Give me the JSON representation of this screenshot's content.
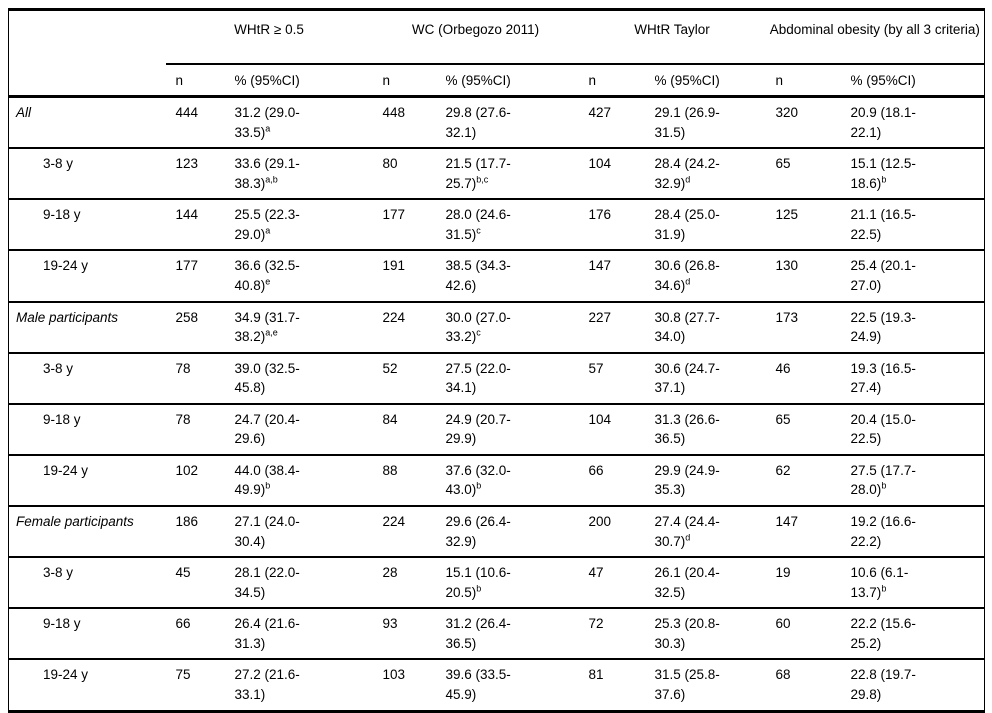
{
  "table": {
    "group_headers": [
      {
        "label": "WHtR ≥ 0.5"
      },
      {
        "label": "WC (Orbegozo 2011)"
      },
      {
        "label": "WHtR Taylor"
      },
      {
        "label": "Abdominal obesity (by all 3 criteria)"
      }
    ],
    "sub_header": {
      "n": "n",
      "pct": "% (95%CI)"
    },
    "rows": [
      {
        "label": "All",
        "type": "group",
        "cells": [
          {
            "n": "444",
            "p1": "31.2 (29.0-",
            "p2": "33.5)",
            "sup": "a"
          },
          {
            "n": "448",
            "p1": "29.8 (27.6-",
            "p2": "32.1)",
            "sup": ""
          },
          {
            "n": "427",
            "p1": "29.1 (26.9-",
            "p2": "31.5)",
            "sup": ""
          },
          {
            "n": "320",
            "p1": "20.9 (18.1-",
            "p2": "22.1)",
            "sup": ""
          }
        ]
      },
      {
        "label": "3-8 y",
        "type": "age",
        "cells": [
          {
            "n": "123",
            "p1": "33.6 (29.1-",
            "p2": "38.3)",
            "sup": "a,b"
          },
          {
            "n": "80",
            "p1": "21.5 (17.7-",
            "p2": "25.7)",
            "sup": "b,c"
          },
          {
            "n": "104",
            "p1": "28.4 (24.2-",
            "p2": "32.9)",
            "sup": "d"
          },
          {
            "n": "65",
            "p1": "15.1 (12.5-",
            "p2": "18.6)",
            "sup": "b"
          }
        ]
      },
      {
        "label": "9-18 y",
        "type": "age",
        "cells": [
          {
            "n": "144",
            "p1": "25.5 (22.3-",
            "p2": "29.0)",
            "sup": "a"
          },
          {
            "n": "177",
            "p1": "28.0 (24.6-",
            "p2": "31.5)",
            "sup": "c"
          },
          {
            "n": "176",
            "p1": "28.4 (25.0-",
            "p2": "31.9)",
            "sup": ""
          },
          {
            "n": "125",
            "p1": "21.1 (16.5-",
            "p2": "22.5)",
            "sup": ""
          }
        ]
      },
      {
        "label": "19-24 y",
        "type": "age",
        "cells": [
          {
            "n": "177",
            "p1": "36.6 (32.5-",
            "p2": "40.8)",
            "sup": "e"
          },
          {
            "n": "191",
            "p1": "38.5 (34.3-",
            "p2": "42.6)",
            "sup": ""
          },
          {
            "n": "147",
            "p1": "30.6 (26.8-",
            "p2": "34.6)",
            "sup": "d"
          },
          {
            "n": "130",
            "p1": "25.4 (20.1-",
            "p2": "27.0)",
            "sup": ""
          }
        ]
      },
      {
        "label": "Male participants",
        "type": "group",
        "cells": [
          {
            "n": "258",
            "p1": "34.9 (31.7-",
            "p2": "38.2)",
            "sup": "a,e"
          },
          {
            "n": "224",
            "p1": "30.0 (27.0-",
            "p2": "33.2)",
            "sup": "c"
          },
          {
            "n": "227",
            "p1": "30.8 (27.7-",
            "p2": "34.0)",
            "sup": ""
          },
          {
            "n": "173",
            "p1": "22.5 (19.3-",
            "p2": "24.9)",
            "sup": ""
          }
        ]
      },
      {
        "label": "3-8 y",
        "type": "age",
        "cells": [
          {
            "n": "78",
            "p1": "39.0 (32.5-",
            "p2": "45.8)",
            "sup": ""
          },
          {
            "n": "52",
            "p1": "27.5 (22.0-",
            "p2": "34.1)",
            "sup": ""
          },
          {
            "n": "57",
            "p1": "30.6 (24.7-",
            "p2": "37.1)",
            "sup": ""
          },
          {
            "n": "46",
            "p1": "19.3 (16.5-",
            "p2": "27.4)",
            "sup": ""
          }
        ]
      },
      {
        "label": "9-18 y",
        "type": "age",
        "cells": [
          {
            "n": "78",
            "p1": "24.7 (20.4-",
            "p2": "29.6)",
            "sup": ""
          },
          {
            "n": "84",
            "p1": "24.9 (20.7-",
            "p2": "29.9)",
            "sup": ""
          },
          {
            "n": "104",
            "p1": "31.3 (26.6-",
            "p2": "36.5)",
            "sup": ""
          },
          {
            "n": "65",
            "p1": "20.4 (15.0-",
            "p2": "22.5)",
            "sup": ""
          }
        ]
      },
      {
        "label": "19-24 y",
        "type": "age",
        "cells": [
          {
            "n": "102",
            "p1": "44.0 (38.4-",
            "p2": "49.9)",
            "sup": "b"
          },
          {
            "n": "88",
            "p1": "37.6 (32.0-",
            "p2": "43.0)",
            "sup": "b"
          },
          {
            "n": "66",
            "p1": "29.9 (24.9-",
            "p2": "35.3)",
            "sup": ""
          },
          {
            "n": "62",
            "p1": "27.5 (17.7-",
            "p2": "28.0)",
            "sup": "b"
          }
        ]
      },
      {
        "label": "Female participants",
        "type": "group",
        "cells": [
          {
            "n": "186",
            "p1": "27.1 (24.0-",
            "p2": "30.4)",
            "sup": ""
          },
          {
            "n": "224",
            "p1": "29.6 (26.4-",
            "p2": "32.9)",
            "sup": ""
          },
          {
            "n": "200",
            "p1": "27.4 (24.4-",
            "p2": "30.7)",
            "sup": "d"
          },
          {
            "n": "147",
            "p1": "19.2 (16.6-",
            "p2": "22.2)",
            "sup": ""
          }
        ]
      },
      {
        "label": "3-8 y",
        "type": "age",
        "cells": [
          {
            "n": "45",
            "p1": "28.1 (22.0-",
            "p2": "34.5)",
            "sup": ""
          },
          {
            "n": "28",
            "p1": "15.1 (10.6-",
            "p2": "20.5)",
            "sup": "b"
          },
          {
            "n": "47",
            "p1": "26.1 (20.4-",
            "p2": "32.5)",
            "sup": ""
          },
          {
            "n": "19",
            "p1": "10.6 (6.1-",
            "p2": "13.7)",
            "sup": "b"
          }
        ]
      },
      {
        "label": "9-18 y",
        "type": "age",
        "cells": [
          {
            "n": "66",
            "p1": "26.4 (21.6-",
            "p2": "31.3)",
            "sup": ""
          },
          {
            "n": "93",
            "p1": "31.2 (26.4-",
            "p2": "36.5)",
            "sup": ""
          },
          {
            "n": "72",
            "p1": "25.3 (20.8-",
            "p2": "30.3)",
            "sup": ""
          },
          {
            "n": "60",
            "p1": "22.2 (15.6-",
            "p2": "25.2)",
            "sup": ""
          }
        ]
      },
      {
        "label": "19-24 y",
        "type": "age",
        "cells": [
          {
            "n": "75",
            "p1": "27.2 (21.6-",
            "p2": "33.1)",
            "sup": ""
          },
          {
            "n": "103",
            "p1": "39.6 (33.5-",
            "p2": "45.9)",
            "sup": ""
          },
          {
            "n": "81",
            "p1": "31.5 (25.8-",
            "p2": "37.6)",
            "sup": ""
          },
          {
            "n": "68",
            "p1": "22.8 (19.7-",
            "p2": "29.8)",
            "sup": ""
          }
        ]
      }
    ]
  }
}
